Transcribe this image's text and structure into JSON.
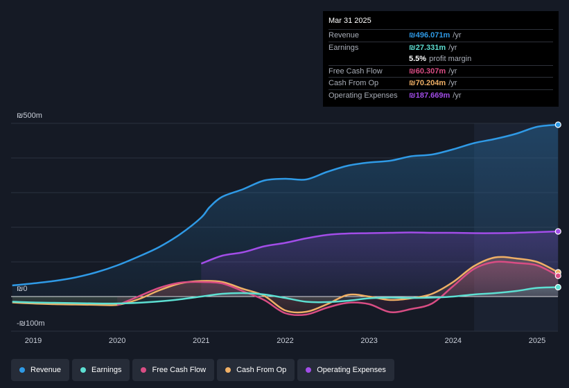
{
  "chart_data": {
    "type": "area",
    "title": "",
    "ylim": [
      -100,
      500
    ],
    "y_tick_labels": [
      "₪500m",
      "₪0",
      "-₪100m"
    ],
    "x_tick_labels": [
      "2019",
      "2020",
      "2021",
      "2022",
      "2023",
      "2024",
      "2025"
    ],
    "x_ticks": [
      2019.0,
      2020.0,
      2021.0,
      2022.0,
      2023.0,
      2024.0,
      2025.0
    ],
    "xlim": [
      2018.75,
      2025.25
    ],
    "forecast_start": 2024.25,
    "series": [
      {
        "name": "Revenue",
        "color": "#2f9ae6",
        "x": [
          2018.75,
          2019.0,
          2019.25,
          2019.5,
          2019.75,
          2020.0,
          2020.25,
          2020.5,
          2020.75,
          2021.0,
          2021.1,
          2021.25,
          2021.5,
          2021.75,
          2022.0,
          2022.25,
          2022.5,
          2022.75,
          2023.0,
          2023.25,
          2023.5,
          2023.75,
          2024.0,
          2024.25,
          2024.5,
          2024.75,
          2025.0,
          2025.25
        ],
        "values": [
          32,
          38,
          45,
          55,
          70,
          90,
          115,
          143,
          180,
          228,
          258,
          288,
          310,
          335,
          340,
          338,
          360,
          378,
          387,
          392,
          405,
          410,
          425,
          443,
          455,
          470,
          490,
          496
        ]
      },
      {
        "name": "Earnings",
        "color": "#5ddfd2",
        "x": [
          2018.75,
          2019.0,
          2019.25,
          2019.5,
          2019.75,
          2020.0,
          2020.25,
          2020.5,
          2020.75,
          2021.0,
          2021.25,
          2021.5,
          2021.75,
          2022.0,
          2022.25,
          2022.5,
          2022.75,
          2023.0,
          2023.25,
          2023.5,
          2023.75,
          2024.0,
          2024.25,
          2024.5,
          2024.75,
          2025.0,
          2025.25
        ],
        "values": [
          -15,
          -17,
          -18,
          -19,
          -20,
          -20,
          -18,
          -14,
          -8,
          0,
          8,
          10,
          6,
          -4,
          -15,
          -16,
          -12,
          -5,
          -3,
          -4,
          -3,
          0,
          6,
          10,
          16,
          25,
          27
        ]
      },
      {
        "name": "Free Cash Flow",
        "color": "#d94d84",
        "x": [
          2020.0,
          2020.25,
          2020.5,
          2020.75,
          2021.0,
          2021.25,
          2021.5,
          2021.75,
          2022.0,
          2022.25,
          2022.5,
          2022.75,
          2023.0,
          2023.25,
          2023.5,
          2023.75,
          2024.0,
          2024.25,
          2024.5,
          2024.75,
          2025.0,
          2025.25
        ],
        "values": [
          -25,
          0,
          25,
          40,
          42,
          38,
          15,
          -10,
          -48,
          -52,
          -32,
          -18,
          -22,
          -45,
          -36,
          -20,
          30,
          80,
          100,
          97,
          90,
          60
        ]
      },
      {
        "name": "Cash From Op",
        "color": "#f0b066",
        "x": [
          2018.75,
          2019.0,
          2019.25,
          2019.5,
          2019.75,
          2020.0,
          2020.25,
          2020.5,
          2020.75,
          2021.0,
          2021.25,
          2021.5,
          2021.75,
          2022.0,
          2022.25,
          2022.5,
          2022.75,
          2023.0,
          2023.25,
          2023.5,
          2023.75,
          2024.0,
          2024.25,
          2024.5,
          2024.75,
          2025.0,
          2025.25
        ],
        "values": [
          -17,
          -20,
          -22,
          -23,
          -24,
          -24,
          -8,
          18,
          38,
          45,
          42,
          22,
          2,
          -40,
          -44,
          -22,
          5,
          0,
          -10,
          -5,
          8,
          42,
          88,
          113,
          110,
          100,
          70
        ]
      },
      {
        "name": "Operating Expenses",
        "color": "#a24de8",
        "x": [
          2021.0,
          2021.25,
          2021.5,
          2021.75,
          2022.0,
          2022.25,
          2022.5,
          2022.75,
          2023.0,
          2023.25,
          2023.5,
          2023.75,
          2024.0,
          2024.25,
          2024.5,
          2024.75,
          2025.0,
          2025.25
        ],
        "values": [
          95,
          118,
          128,
          145,
          155,
          168,
          178,
          182,
          183,
          184,
          185,
          184,
          184,
          183,
          183,
          184,
          186,
          188
        ]
      }
    ]
  },
  "tooltip": {
    "date": "Mar 31 2025",
    "rows": [
      {
        "label": "Revenue",
        "value": "₪496.071m",
        "unit": "/yr",
        "color": "#2f9ae6"
      },
      {
        "label": "Earnings",
        "value": "₪27.331m",
        "unit": "/yr",
        "color": "#5ddfd2"
      },
      {
        "label": "",
        "value": "5.5%",
        "unit": "profit margin",
        "color": "#ffffff"
      },
      {
        "label": "Free Cash Flow",
        "value": "₪60.307m",
        "unit": "/yr",
        "color": "#d94d84"
      },
      {
        "label": "Cash From Op",
        "value": "₪70.204m",
        "unit": "/yr",
        "color": "#f0b066"
      },
      {
        "label": "Operating Expenses",
        "value": "₪187.669m",
        "unit": "/yr",
        "color": "#a24de8"
      }
    ]
  },
  "legend": [
    {
      "label": "Revenue",
      "color": "#2f9ae6"
    },
    {
      "label": "Earnings",
      "color": "#5ddfd2"
    },
    {
      "label": "Free Cash Flow",
      "color": "#d94d84"
    },
    {
      "label": "Cash From Op",
      "color": "#f0b066"
    },
    {
      "label": "Operating Expenses",
      "color": "#a24de8"
    }
  ]
}
